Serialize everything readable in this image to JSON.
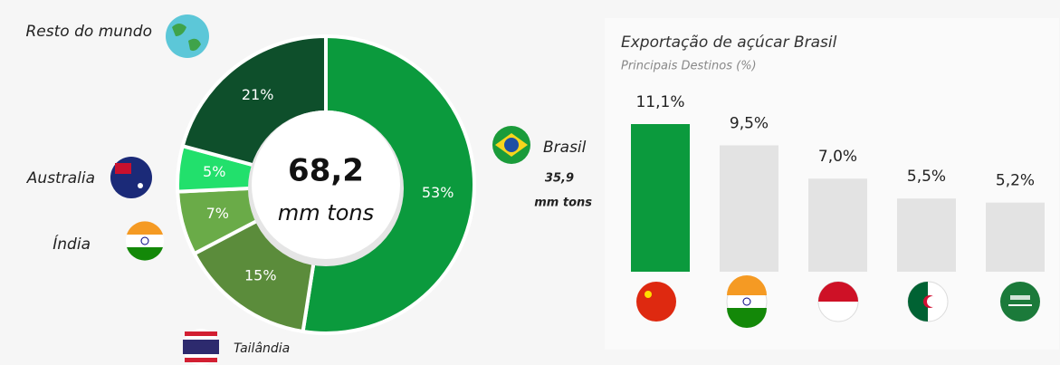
{
  "chart_data": [
    {
      "type": "donut",
      "categories": [
        "Brasil",
        "Tailândia",
        "Índia",
        "Australia",
        "Resto do mundo"
      ],
      "values": [
        53,
        15,
        7,
        5,
        21
      ],
      "value_labels": [
        "53%",
        "15%",
        "7%",
        "5%",
        "21%"
      ],
      "colors": [
        "#0b9a3d",
        "#5b8c3b",
        "#6aab48",
        "#22e06c",
        "#0e4f2b"
      ],
      "center_value": "68,2",
      "center_unit": "mm tons",
      "brasil_volume": "35,9",
      "brasil_unit": "mm tons"
    },
    {
      "type": "bar",
      "title": "Exportação de açúcar Brasil",
      "subtitle": "Principais Destinos (%)",
      "categories": [
        null,
        null,
        null,
        null,
        null
      ],
      "values": [
        11.1,
        9.5,
        7.0,
        5.5,
        5.2
      ],
      "value_labels": [
        "11,1%",
        "9,5%",
        "7,0%",
        "5,5%",
        "5,2%"
      ],
      "colors": [
        "#0b9a3d",
        "#e3e3e3",
        "#e3e3e3",
        "#e3e3e3",
        "#e3e3e3"
      ]
    }
  ]
}
